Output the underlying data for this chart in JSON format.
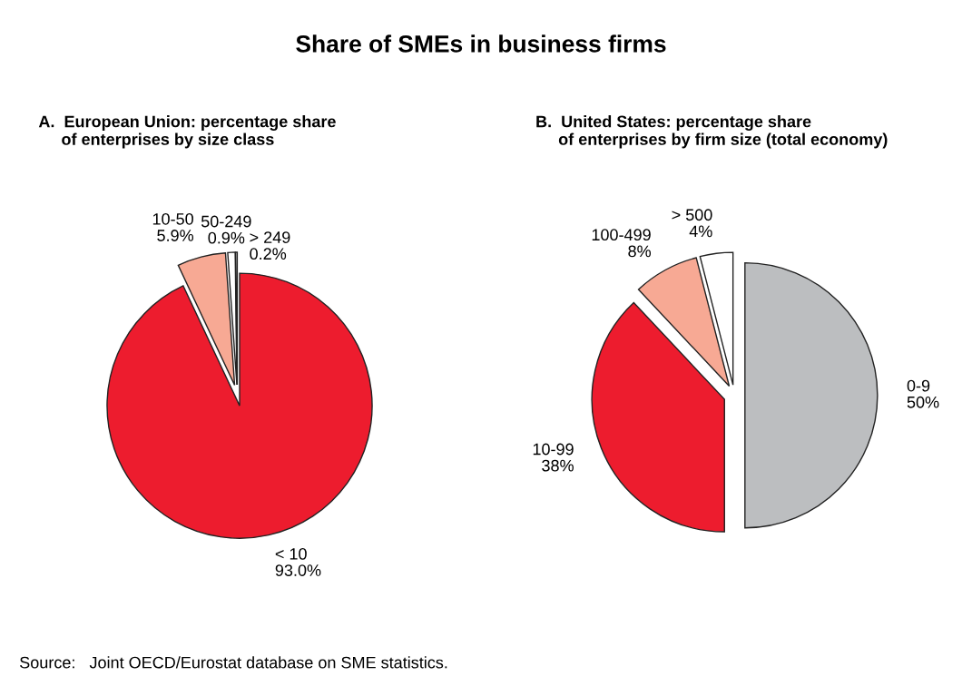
{
  "chart_data": [
    {
      "type": "pie",
      "title": "Share of SMEs in business firms",
      "subtitle": "A.  European Union: percentage share\n     of enterprises by size class",
      "categories": [
        "< 10",
        "10-50",
        "50-249",
        "> 249"
      ],
      "values": [
        93.0,
        5.9,
        0.9,
        0.2
      ],
      "value_labels": [
        "93.0%",
        "5.9%",
        "0.9%",
        "0.2%"
      ],
      "colors": [
        "#ed1c2e",
        "#f7a994",
        "#ffffff",
        "#ffffff"
      ],
      "annotations": [
        "Source:   Joint OECD/Eurostat database on SME statistics."
      ]
    },
    {
      "type": "pie",
      "subtitle": "B.  United States: percentage share\n     of enterprises by firm size (total economy)",
      "categories": [
        "0-9",
        "10-99",
        "100-499",
        "> 500"
      ],
      "values": [
        50,
        38,
        8,
        4
      ],
      "value_labels": [
        "50%",
        "38%",
        "8%",
        "4%"
      ],
      "colors": [
        "#bcbec0",
        "#ed1c2e",
        "#f7a994",
        "#ffffff"
      ]
    }
  ]
}
